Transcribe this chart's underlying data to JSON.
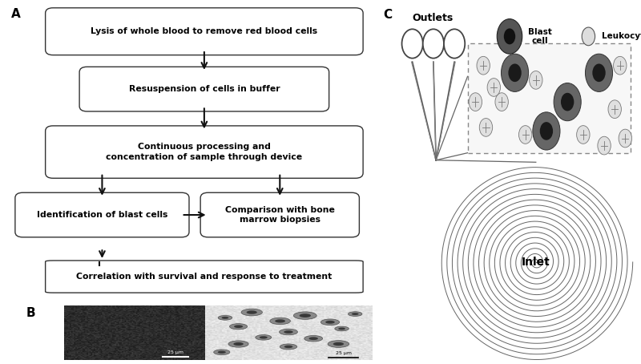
{
  "title_A": "A",
  "title_B": "B",
  "title_C": "C",
  "label_outlets": "Outlets",
  "label_blast": "Blast\ncell",
  "label_leukocyte": "Leukocyte",
  "label_inlet": "Inlet",
  "box1_text": "Lysis of whole blood to remove red blood cells",
  "box2_text": "Resuspension of cells in buffer",
  "box3_text": "Continuous processing and\nconcentration of sample through device",
  "box4_text": "Identification of blast cells",
  "box5_text": "Comparison with bone\nmarrow biopsies",
  "box6_text": "Correlation with survival and response to treatment",
  "bg_color": "#ffffff",
  "box_edge_color": "#333333",
  "arrow_color": "#111111",
  "spiral_color": "#666666",
  "n_spiral_turns": 18
}
